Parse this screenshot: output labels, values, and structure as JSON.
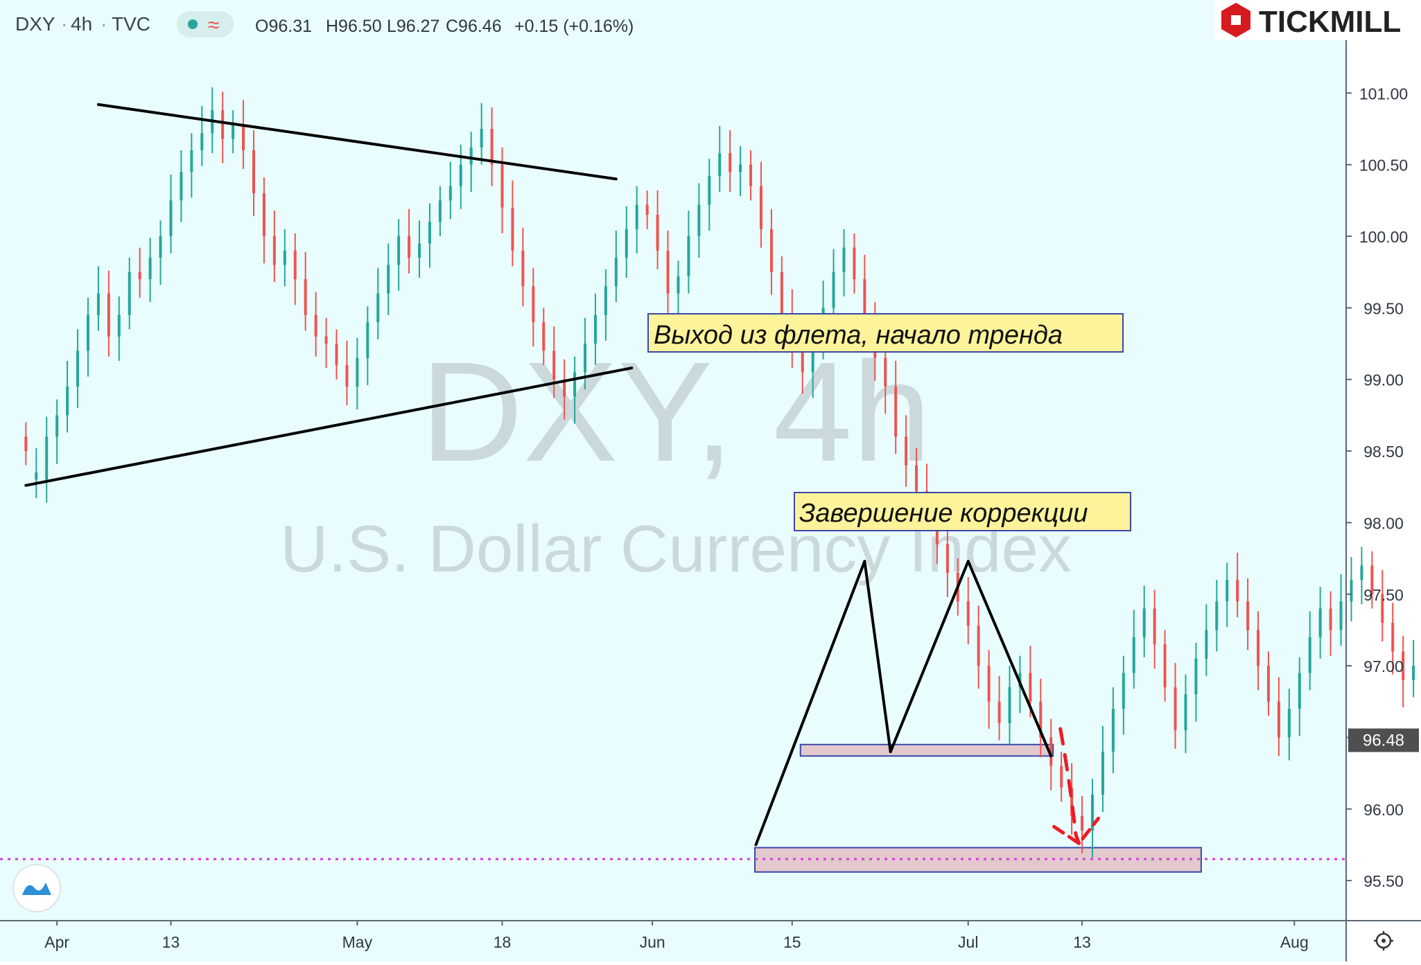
{
  "header": {
    "symbol": "DXY",
    "interval": "4h",
    "source": "TVC",
    "ohlc": {
      "o": "O96.31",
      "h": "H96.50",
      "l": "L96.27",
      "c": "C96.46",
      "chg": "+0.15 (+0.16%)"
    }
  },
  "brand": {
    "name": "TICKMILL",
    "color": "#d71920"
  },
  "watermark": {
    "line1": "DXY, 4h",
    "line2": "U.S. Dollar Currency Index"
  },
  "annotations": {
    "breakout": "Выход из флета, начало тренда",
    "correction": "Завершение коррекции"
  },
  "price_label": "96.48",
  "colors": {
    "background": "#e9fdfe",
    "up": "#26a69a",
    "down": "#ef5350",
    "label_bg": "#fdf39a",
    "zone_fill": "#e3c9cd",
    "zone_border": "#3b47a8",
    "target_line": "#d63bdc",
    "arrow": "#ee1c25"
  },
  "chart_data": {
    "type": "candlestick",
    "title": "DXY, 4h",
    "ylim": [
      95.22,
      101.65
    ],
    "xlim": [
      -2.5,
      127.5
    ],
    "x_ticks": [
      {
        "label": "Apr",
        "x": 3
      },
      {
        "label": "13",
        "x": 14
      },
      {
        "label": "May",
        "x": 32
      },
      {
        "label": "18",
        "x": 46
      },
      {
        "label": "Jun",
        "x": 60.5
      },
      {
        "label": "15",
        "x": 74
      },
      {
        "label": "Jul",
        "x": 91
      },
      {
        "label": "13",
        "x": 102
      },
      {
        "label": "Aug",
        "x": 122.5
      }
    ],
    "y_ticks": [
      101.0,
      100.5,
      100.0,
      99.5,
      99.0,
      98.5,
      98.0,
      97.5,
      97.0,
      96.5,
      96.0,
      95.5
    ],
    "last_price": 96.48,
    "target_level": 95.65,
    "trendlines": [
      {
        "x1": 7,
        "y1": 100.92,
        "x2": 57,
        "y2": 100.4
      },
      {
        "x1": 0,
        "y1": 98.26,
        "x2": 58.5,
        "y2": 99.08
      },
      {
        "x1": 70.5,
        "y1": 95.75,
        "x2": 81,
        "y2": 97.73
      },
      {
        "x1": 81,
        "y1": 97.73,
        "x2": 83.5,
        "y2": 96.4
      },
      {
        "x1": 83.5,
        "y1": 96.4,
        "x2": 91,
        "y2": 97.73
      },
      {
        "x1": 91,
        "y1": 97.73,
        "x2": 99,
        "y2": 96.37
      }
    ],
    "zones": [
      {
        "x1": 74.8,
        "x2": 99.2,
        "y1": 96.37,
        "y2": 96.45
      },
      {
        "x1": 70.4,
        "x2": 113.5,
        "y1": 95.56,
        "y2": 95.73
      }
    ],
    "projection": [
      [
        99.9,
        96.56
      ],
      [
        100.8,
        96.2
      ],
      [
        101.4,
        95.82
      ],
      [
        101.7,
        95.76
      ]
    ],
    "points": [
      [
        98.6,
        98.5
      ],
      [
        98.3,
        98.35
      ],
      [
        98.3,
        98.6
      ],
      [
        98.6,
        98.75
      ],
      [
        98.75,
        98.95
      ],
      [
        98.95,
        99.2
      ],
      [
        99.2,
        99.45
      ],
      [
        99.45,
        99.6
      ],
      [
        99.6,
        99.3
      ],
      [
        99.3,
        99.45
      ],
      [
        99.45,
        99.75
      ],
      [
        99.75,
        99.7
      ],
      [
        99.7,
        99.85
      ],
      [
        99.85,
        100.0
      ],
      [
        100.0,
        100.25
      ],
      [
        100.25,
        100.45
      ],
      [
        100.45,
        100.6
      ],
      [
        100.6,
        100.72
      ],
      [
        100.72,
        100.88
      ],
      [
        100.88,
        100.68
      ],
      [
        100.68,
        100.78
      ],
      [
        100.78,
        100.6
      ],
      [
        100.6,
        100.3
      ],
      [
        100.3,
        100.0
      ],
      [
        100.0,
        99.8
      ],
      [
        99.8,
        99.9
      ],
      [
        99.9,
        99.7
      ],
      [
        99.7,
        99.45
      ],
      [
        99.45,
        99.3
      ],
      [
        99.3,
        99.25
      ],
      [
        99.25,
        99.1
      ],
      [
        99.1,
        98.95
      ],
      [
        98.95,
        99.15
      ],
      [
        99.15,
        99.4
      ],
      [
        99.4,
        99.6
      ],
      [
        99.6,
        99.8
      ],
      [
        99.8,
        100.0
      ],
      [
        100.0,
        99.85
      ],
      [
        99.85,
        99.95
      ],
      [
        99.95,
        100.1
      ],
      [
        100.1,
        100.25
      ],
      [
        100.25,
        100.35
      ],
      [
        100.35,
        100.5
      ],
      [
        100.5,
        100.62
      ],
      [
        100.62,
        100.75
      ],
      [
        100.75,
        100.5
      ],
      [
        100.5,
        100.2
      ],
      [
        100.2,
        99.9
      ],
      [
        99.9,
        99.65
      ],
      [
        99.65,
        99.4
      ],
      [
        99.4,
        99.2
      ],
      [
        99.2,
        99.0
      ],
      [
        99.0,
        98.88
      ],
      [
        98.88,
        99.05
      ],
      [
        99.05,
        99.25
      ],
      [
        99.25,
        99.45
      ],
      [
        99.45,
        99.65
      ],
      [
        99.65,
        99.85
      ],
      [
        99.85,
        100.05
      ],
      [
        100.05,
        100.22
      ],
      [
        100.22,
        100.15
      ],
      [
        100.15,
        99.9
      ],
      [
        99.9,
        99.6
      ],
      [
        99.6,
        99.72
      ],
      [
        99.72,
        100.0
      ],
      [
        100.0,
        100.22
      ],
      [
        100.22,
        100.42
      ],
      [
        100.42,
        100.58
      ],
      [
        100.58,
        100.45
      ],
      [
        100.45,
        100.5
      ],
      [
        100.5,
        100.35
      ],
      [
        100.35,
        100.05
      ],
      [
        100.05,
        99.75
      ],
      [
        99.75,
        99.45
      ],
      [
        99.45,
        99.2
      ],
      [
        99.2,
        99.05
      ],
      [
        99.05,
        99.25
      ],
      [
        99.25,
        99.5
      ],
      [
        99.5,
        99.75
      ],
      [
        99.75,
        99.92
      ],
      [
        99.92,
        99.7
      ],
      [
        99.7,
        99.4
      ],
      [
        99.4,
        99.15
      ],
      [
        99.15,
        98.95
      ],
      [
        98.95,
        98.6
      ],
      [
        98.6,
        98.4
      ],
      [
        98.4,
        98.22
      ],
      [
        98.22,
        98.05
      ],
      [
        98.05,
        97.85
      ],
      [
        97.85,
        97.65
      ],
      [
        97.65,
        97.45
      ],
      [
        97.45,
        97.28
      ],
      [
        97.28,
        97.0
      ],
      [
        97.0,
        96.75
      ],
      [
        96.75,
        96.6
      ],
      [
        96.6,
        96.85
      ],
      [
        96.85,
        96.95
      ],
      [
        96.95,
        96.75
      ],
      [
        96.75,
        96.5
      ],
      [
        96.5,
        96.3
      ],
      [
        96.3,
        96.15
      ],
      [
        96.15,
        95.95
      ],
      [
        95.95,
        95.85
      ],
      [
        95.85,
        96.1
      ],
      [
        96.1,
        96.4
      ],
      [
        96.4,
        96.7
      ],
      [
        96.7,
        96.95
      ],
      [
        96.95,
        97.2
      ],
      [
        97.2,
        97.4
      ],
      [
        97.4,
        97.15
      ],
      [
        97.15,
        96.85
      ],
      [
        96.85,
        96.55
      ],
      [
        96.55,
        96.8
      ],
      [
        96.8,
        97.05
      ],
      [
        97.05,
        97.25
      ],
      [
        97.25,
        97.45
      ],
      [
        97.45,
        97.6
      ],
      [
        97.6,
        97.45
      ],
      [
        97.45,
        97.25
      ],
      [
        97.25,
        97.0
      ],
      [
        97.0,
        96.75
      ],
      [
        96.75,
        96.5
      ],
      [
        96.5,
        96.7
      ],
      [
        96.7,
        96.95
      ],
      [
        96.95,
        97.2
      ],
      [
        97.2,
        97.4
      ],
      [
        97.4,
        97.25
      ],
      [
        97.25,
        97.45
      ],
      [
        97.45,
        97.6
      ],
      [
        97.6,
        97.7
      ],
      [
        97.7,
        97.5
      ],
      [
        97.5,
        97.3
      ],
      [
        97.3,
        97.1
      ],
      [
        97.1,
        96.9
      ],
      [
        96.9,
        97.0
      ],
      [
        97.0,
        96.8
      ],
      [
        96.8,
        96.65
      ],
      [
        96.65,
        96.8
      ],
      [
        96.8,
        96.95
      ],
      [
        96.95,
        96.7
      ],
      [
        96.7,
        96.5
      ],
      [
        96.5,
        96.38
      ],
      [
        96.38,
        96.46
      ]
    ]
  }
}
